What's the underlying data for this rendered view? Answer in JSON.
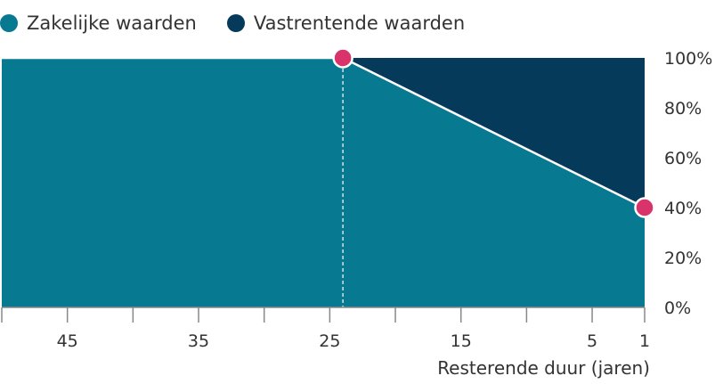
{
  "legend": [
    {
      "label": "Zakelijke waarden",
      "color": "#077991"
    },
    {
      "label": "Vastrentende waarden",
      "color": "#063a5a"
    }
  ],
  "chart_data": {
    "type": "area",
    "xlabel": "Resterende duur (jaren)",
    "ylabel": "",
    "x_reversed": true,
    "xlim": [
      50,
      1
    ],
    "ylim": [
      0,
      100
    ],
    "x_ticks": [
      45,
      35,
      25,
      15,
      5,
      1
    ],
    "x_minor_ticks": [
      50,
      40,
      30,
      20,
      10
    ],
    "y_ticks": [
      "0%",
      "20%",
      "40%",
      "60%",
      "80%",
      "100%"
    ],
    "y_tick_values": [
      0,
      20,
      40,
      60,
      80,
      100
    ],
    "series": [
      {
        "name": "Zakelijke waarden",
        "color": "#077991",
        "x": [
          50,
          24,
          1
        ],
        "values": [
          100,
          100,
          40
        ]
      },
      {
        "name": "Vastrentende waarden",
        "color": "#063a5a",
        "x": [
          50,
          24,
          1
        ],
        "values": [
          0,
          0,
          60
        ]
      }
    ],
    "markers": [
      {
        "x": 24,
        "y": 100,
        "color": "#d8336b"
      },
      {
        "x": 1,
        "y": 40,
        "color": "#d8336b"
      }
    ],
    "reference_line_x": 24
  }
}
